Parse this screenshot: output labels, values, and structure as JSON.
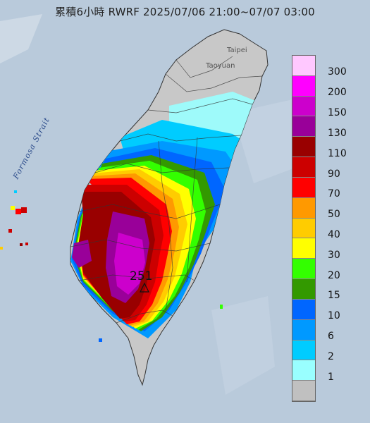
{
  "title": "累積6小時 RWRF 2025/07/06 21:00~07/07 03:00",
  "places": {
    "taipei": "Taipei",
    "taoyuan": "Taoyuan",
    "strait": "Formosa Strait"
  },
  "max_value": "251",
  "legend": [
    {
      "label": "300",
      "color": "#ffc8ff"
    },
    {
      "label": "200",
      "color": "#ff00ff"
    },
    {
      "label": "150",
      "color": "#cc00cc"
    },
    {
      "label": "130",
      "color": "#990099"
    },
    {
      "label": "110",
      "color": "#990000"
    },
    {
      "label": "90",
      "color": "#cc0000"
    },
    {
      "label": "70",
      "color": "#ff0000"
    },
    {
      "label": "50",
      "color": "#ff9900"
    },
    {
      "label": "40",
      "color": "#ffcc00"
    },
    {
      "label": "30",
      "color": "#ffff00"
    },
    {
      "label": "20",
      "color": "#33ff00"
    },
    {
      "label": "15",
      "color": "#339900"
    },
    {
      "label": "10",
      "color": "#0066ff"
    },
    {
      "label": "6",
      "color": "#0099ff"
    },
    {
      "label": "2",
      "color": "#00ccff"
    },
    {
      "label": "1",
      "color": "#99ffff"
    },
    {
      "label": "",
      "color": "#c0c0c0"
    }
  ]
}
